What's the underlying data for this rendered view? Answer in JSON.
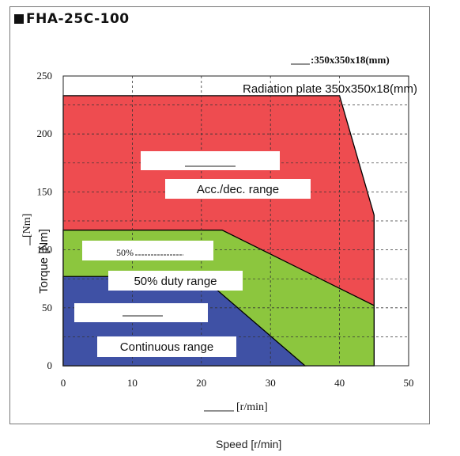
{
  "title": "FHA-25C-100",
  "speed_label": "Speed [r/min]",
  "colors": {
    "acc_dec": "#ee4c50",
    "duty50": "#8cc63e",
    "continuous": "#3f51a5",
    "grid": "#333333"
  },
  "chart_data": {
    "type": "area",
    "xlabel": "[r/min]",
    "ylabel": "Torque [Nm]",
    "ylabel_jp": "[Nm]",
    "xlim": [
      0,
      50
    ],
    "ylim": [
      0,
      250
    ],
    "x_ticks": [
      "0",
      "10",
      "20",
      "30",
      "40",
      "50"
    ],
    "y_ticks": [
      "0",
      "50",
      "100",
      "150",
      "200",
      "250"
    ],
    "grid": true,
    "legend_text": ":350x350x18(mm)",
    "legend_label": "Radiation plate 350x350x18(mm)",
    "series": [
      {
        "name": "Acc./dec. range",
        "x": [
          0,
          40,
          45,
          45,
          0
        ],
        "y": [
          233,
          233,
          130,
          0,
          0
        ]
      },
      {
        "name": "50% duty range",
        "x": [
          0,
          23,
          45,
          45,
          0
        ],
        "y": [
          117,
          117,
          52,
          0,
          0
        ]
      },
      {
        "name": "Continuous range",
        "x": [
          0,
          20,
          35,
          0
        ],
        "y": [
          77,
          77,
          0,
          0
        ]
      }
    ],
    "annotations": {
      "acc_dec_label": "Acc./dec. range",
      "duty_prefix": "50%",
      "duty_label": "50% duty range",
      "cont_label": "Continuous range"
    }
  }
}
